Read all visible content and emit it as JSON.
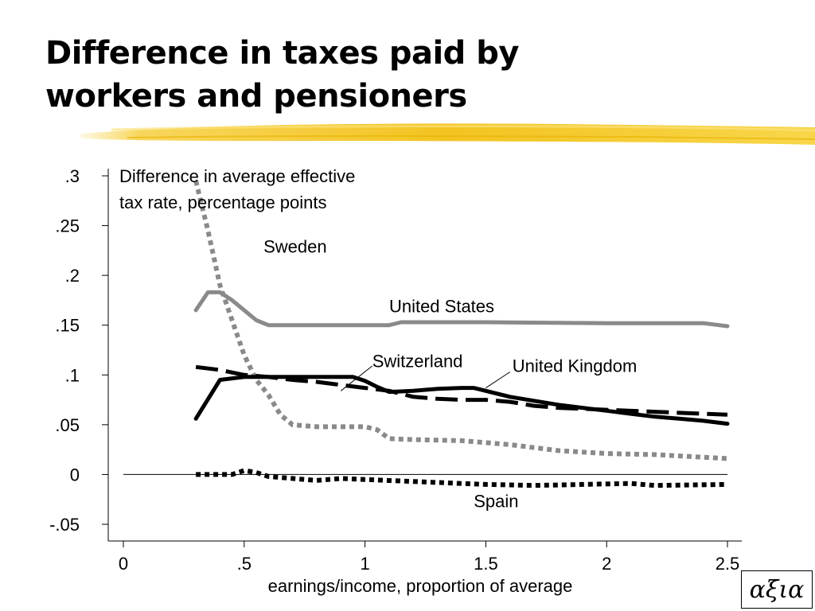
{
  "title": {
    "line1": "Difference in taxes paid by",
    "line2": "workers and pensioners"
  },
  "logo": {
    "text": "αξια"
  },
  "colors": {
    "accent_brush": "#f5c518",
    "gray_series": "#8a8a8a",
    "black_series": "#000000"
  },
  "chart_data": {
    "type": "line",
    "title": "Difference in average effective tax rate, percentage points",
    "ylabel_lines": [
      "Difference in average effective",
      "tax rate, percentage points"
    ],
    "xlabel": "earnings/income, proportion of average",
    "xlim": [
      0,
      2.5
    ],
    "ylim": [
      -0.05,
      0.3
    ],
    "x_ticks": [
      0,
      0.5,
      1,
      1.5,
      2,
      2.5
    ],
    "x_tick_labels": [
      "0",
      ".5",
      "1",
      "1.5",
      "2",
      "2.5"
    ],
    "y_ticks": [
      -0.05,
      0,
      0.05,
      0.1,
      0.15,
      0.2,
      0.25,
      0.3
    ],
    "y_tick_labels": [
      "-.05",
      "0",
      ".05",
      ".1",
      ".15",
      ".2",
      ".25",
      ".3"
    ],
    "grid": false,
    "zero_line": true,
    "series": [
      {
        "name": "Sweden",
        "color": "#8a8a8a",
        "style": "dotted",
        "points": [
          [
            0.3,
            0.295
          ],
          [
            0.35,
            0.245
          ],
          [
            0.4,
            0.19
          ],
          [
            0.45,
            0.155
          ],
          [
            0.5,
            0.12
          ],
          [
            0.55,
            0.095
          ],
          [
            0.6,
            0.08
          ],
          [
            0.65,
            0.06
          ],
          [
            0.7,
            0.05
          ],
          [
            0.8,
            0.048
          ],
          [
            0.9,
            0.048
          ],
          [
            1.0,
            0.048
          ],
          [
            1.05,
            0.045
          ],
          [
            1.1,
            0.036
          ],
          [
            1.2,
            0.035
          ],
          [
            1.4,
            0.034
          ],
          [
            1.6,
            0.03
          ],
          [
            1.8,
            0.024
          ],
          [
            2.0,
            0.021
          ],
          [
            2.2,
            0.02
          ],
          [
            2.5,
            0.016
          ]
        ]
      },
      {
        "name": "United States",
        "color": "#8a8a8a",
        "style": "solid",
        "points": [
          [
            0.3,
            0.165
          ],
          [
            0.35,
            0.183
          ],
          [
            0.4,
            0.183
          ],
          [
            0.45,
            0.175
          ],
          [
            0.5,
            0.165
          ],
          [
            0.55,
            0.155
          ],
          [
            0.6,
            0.15
          ],
          [
            0.8,
            0.15
          ],
          [
            1.0,
            0.15
          ],
          [
            1.1,
            0.15
          ],
          [
            1.15,
            0.153
          ],
          [
            1.5,
            0.153
          ],
          [
            2.0,
            0.152
          ],
          [
            2.3,
            0.152
          ],
          [
            2.4,
            0.152
          ],
          [
            2.5,
            0.149
          ]
        ]
      },
      {
        "name": "Switzerland",
        "color": "#000000",
        "style": "dashed",
        "points": [
          [
            0.3,
            0.108
          ],
          [
            0.4,
            0.105
          ],
          [
            0.5,
            0.1
          ],
          [
            0.6,
            0.098
          ],
          [
            0.7,
            0.095
          ],
          [
            0.8,
            0.093
          ],
          [
            0.9,
            0.09
          ],
          [
            1.0,
            0.087
          ],
          [
            1.1,
            0.084
          ],
          [
            1.2,
            0.078
          ],
          [
            1.3,
            0.076
          ],
          [
            1.4,
            0.075
          ],
          [
            1.5,
            0.075
          ],
          [
            1.6,
            0.073
          ],
          [
            1.7,
            0.069
          ],
          [
            1.8,
            0.067
          ],
          [
            1.9,
            0.066
          ],
          [
            2.0,
            0.065
          ],
          [
            2.2,
            0.063
          ],
          [
            2.5,
            0.06
          ]
        ]
      },
      {
        "name": "United Kingdom",
        "color": "#000000",
        "style": "solid",
        "points": [
          [
            0.3,
            0.056
          ],
          [
            0.4,
            0.095
          ],
          [
            0.5,
            0.098
          ],
          [
            0.6,
            0.098
          ],
          [
            0.7,
            0.098
          ],
          [
            0.8,
            0.098
          ],
          [
            0.9,
            0.098
          ],
          [
            0.95,
            0.098
          ],
          [
            1.0,
            0.094
          ],
          [
            1.05,
            0.088
          ],
          [
            1.1,
            0.083
          ],
          [
            1.2,
            0.084
          ],
          [
            1.3,
            0.086
          ],
          [
            1.4,
            0.087
          ],
          [
            1.45,
            0.087
          ],
          [
            1.5,
            0.084
          ],
          [
            1.6,
            0.078
          ],
          [
            1.7,
            0.074
          ],
          [
            1.8,
            0.07
          ],
          [
            1.9,
            0.067
          ],
          [
            2.0,
            0.064
          ],
          [
            2.1,
            0.061
          ],
          [
            2.2,
            0.058
          ],
          [
            2.3,
            0.056
          ],
          [
            2.4,
            0.054
          ],
          [
            2.5,
            0.051
          ]
        ]
      },
      {
        "name": "Spain",
        "color": "#000000",
        "style": "dotted",
        "points": [
          [
            0.3,
            0.0
          ],
          [
            0.45,
            0.0
          ],
          [
            0.5,
            0.004
          ],
          [
            0.55,
            0.002
          ],
          [
            0.6,
            -0.002
          ],
          [
            0.7,
            -0.004
          ],
          [
            0.8,
            -0.006
          ],
          [
            0.9,
            -0.004
          ],
          [
            1.0,
            -0.005
          ],
          [
            1.2,
            -0.007
          ],
          [
            1.4,
            -0.009
          ],
          [
            1.5,
            -0.01
          ],
          [
            1.7,
            -0.011
          ],
          [
            1.9,
            -0.01
          ],
          [
            2.1,
            -0.009
          ],
          [
            2.2,
            -0.011
          ],
          [
            2.5,
            -0.01
          ]
        ]
      }
    ],
    "annotations": [
      {
        "text": "Sweden",
        "x": 0.58,
        "y": 0.223
      },
      {
        "text": "United States",
        "x": 1.1,
        "y": 0.163
      },
      {
        "text": "Switzerland",
        "x": 1.03,
        "y": 0.108
      },
      {
        "text": "United Kingdom",
        "x": 1.61,
        "y": 0.103
      },
      {
        "text": "Spain",
        "x": 1.45,
        "y": -0.033
      }
    ],
    "leader_lines": [
      {
        "label": "Switzerland",
        "from": [
          1.03,
          0.109
        ],
        "to": [
          0.9,
          0.084
        ]
      },
      {
        "label": "United Kingdom",
        "from": [
          1.6,
          0.103
        ],
        "to": [
          1.5,
          0.087
        ]
      }
    ]
  }
}
